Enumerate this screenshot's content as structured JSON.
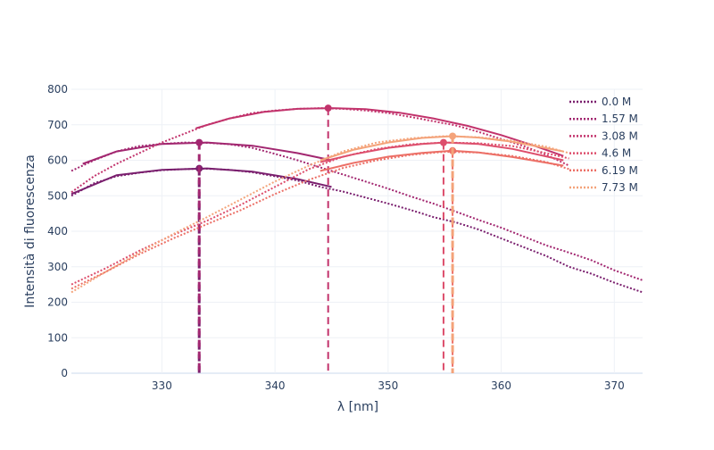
{
  "chart_data": {
    "type": "line",
    "title": "",
    "xlabel": "λ [nm]",
    "ylabel": "Intensità di fluorescenza",
    "xlim": [
      322,
      372.5
    ],
    "ylim": [
      0,
      800
    ],
    "x_ticks": [
      330,
      340,
      350,
      360,
      370
    ],
    "y_ticks": [
      0,
      100,
      200,
      300,
      400,
      500,
      600,
      700,
      800
    ],
    "grid": true,
    "legend_position": "top-right",
    "series": [
      {
        "name": "0.0 M",
        "color": "#7a1f6e",
        "raw_x": [
          322,
          324,
          326,
          328,
          330,
          332,
          334,
          336,
          338,
          340,
          342,
          344,
          346,
          348,
          350,
          352,
          354,
          356,
          358,
          360,
          362,
          364,
          366,
          368,
          370,
          372.5
        ],
        "raw_y": [
          500,
          535,
          555,
          565,
          572,
          575,
          576,
          573,
          566,
          555,
          543,
          525,
          512,
          495,
          478,
          460,
          440,
          425,
          405,
          380,
          355,
          330,
          300,
          280,
          255,
          228
        ],
        "fit_x": [
          322,
          326,
          330,
          334,
          338,
          342,
          345
        ],
        "fit_y": [
          505,
          558,
          573,
          577,
          568,
          547,
          525
        ],
        "peak_x": 333.3,
        "peak_y": 577
      },
      {
        "name": "1.57 M",
        "color": "#a22770",
        "raw_x": [
          322,
          324,
          326,
          328,
          330,
          332,
          334,
          336,
          338,
          340,
          342,
          344,
          346,
          348,
          350,
          352,
          354,
          356,
          358,
          360,
          362,
          364,
          366,
          368,
          370,
          372.5
        ],
        "raw_y": [
          570,
          600,
          625,
          640,
          646,
          650,
          649,
          645,
          635,
          618,
          600,
          580,
          560,
          540,
          520,
          498,
          478,
          455,
          432,
          410,
          385,
          360,
          340,
          318,
          290,
          262
        ],
        "fit_x": [
          323,
          326,
          330,
          334,
          338,
          342,
          345
        ],
        "fit_y": [
          590,
          625,
          646,
          650,
          641,
          620,
          600
        ],
        "peak_x": 333.3,
        "peak_y": 650
      },
      {
        "name": "3.08 M",
        "color": "#c2336c",
        "raw_x": [
          322,
          324,
          326,
          328,
          330,
          332,
          334,
          336,
          338,
          340,
          342,
          344,
          346,
          348,
          350,
          352,
          354,
          356,
          358,
          360,
          362,
          364,
          366
        ],
        "raw_y": [
          510,
          555,
          590,
          620,
          650,
          675,
          700,
          718,
          733,
          740,
          745,
          747,
          745,
          740,
          733,
          722,
          710,
          698,
          680,
          660,
          640,
          615,
          585
        ],
        "fit_x": [
          333,
          336,
          339,
          342,
          345,
          348,
          351,
          354,
          357,
          360,
          363,
          365.5
        ],
        "fit_y": [
          690,
          718,
          736,
          745,
          747,
          744,
          734,
          718,
          697,
          671,
          640,
          612
        ],
        "peak_x": 344.7,
        "peak_y": 747
      },
      {
        "name": "4.6 M",
        "color": "#dd4e6c",
        "raw_x": [
          322,
          325,
          328,
          331,
          334,
          337,
          340,
          343,
          346,
          349,
          352,
          355,
          358,
          361,
          364,
          366
        ],
        "raw_y": [
          250,
          295,
          345,
          390,
          430,
          475,
          525,
          575,
          610,
          632,
          645,
          650,
          648,
          640,
          620,
          605
        ],
        "fit_x": [
          344,
          347,
          350,
          353,
          355,
          358,
          361,
          365.5
        ],
        "fit_y": [
          595,
          617,
          635,
          646,
          650,
          646,
          632,
          600
        ],
        "peak_x": 354.9,
        "peak_y": 650
      },
      {
        "name": "6.19 M",
        "color": "#ec6f66",
        "raw_x": [
          322,
          325,
          328,
          331,
          334,
          337,
          340,
          343,
          346,
          349,
          352,
          355,
          358,
          361,
          364,
          366
        ],
        "raw_y": [
          238,
          285,
          335,
          380,
          420,
          460,
          505,
          545,
          578,
          600,
          615,
          624,
          622,
          612,
          595,
          575
        ],
        "fit_x": [
          344,
          347,
          350,
          353,
          355.7,
          358,
          361,
          365.5
        ],
        "fit_y": [
          570,
          593,
          610,
          621,
          627,
          622,
          609,
          585
        ],
        "peak_x": 355.7,
        "peak_y": 627
      },
      {
        "name": "7.73 M",
        "color": "#f4a37a",
        "raw_x": [
          322,
          325,
          328,
          331,
          334,
          337,
          340,
          343,
          346,
          349,
          352,
          355,
          358,
          361,
          364,
          366
        ],
        "raw_y": [
          228,
          285,
          340,
          392,
          440,
          490,
          540,
          585,
          625,
          650,
          662,
          668,
          665,
          655,
          638,
          620
        ],
        "fit_x": [
          344,
          347,
          350,
          353,
          355.7,
          358,
          361,
          365.5
        ],
        "fit_y": [
          600,
          630,
          650,
          663,
          668,
          664,
          652,
          625
        ],
        "peak_x": 355.7,
        "peak_y": 668
      }
    ]
  }
}
